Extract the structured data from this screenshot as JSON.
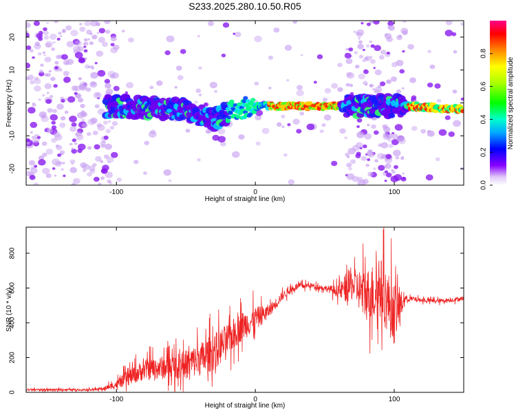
{
  "title": "S233.2025.280.10.50.R05",
  "chart_data": [
    {
      "type": "heatmap",
      "xlabel": "Height of straight line (km)",
      "ylabel": "Frequency (Hz)",
      "xlim": [
        -165,
        150
      ],
      "ylim": [
        -25,
        25
      ],
      "xticks": [
        -100,
        0,
        100
      ],
      "yticks": [
        -20,
        -10,
        0,
        10,
        20
      ],
      "colorbar": {
        "label": "Normalized spectral amplitude",
        "range": [
          0,
          1
        ],
        "ticks": [
          0.0,
          0.2,
          0.4,
          0.6,
          0.8
        ]
      },
      "ridge": {
        "description_points_km_hz": [
          [
            -105,
            -1
          ],
          [
            -50,
            -2
          ],
          [
            -30,
            -5
          ],
          [
            -15,
            -2
          ],
          [
            0,
            -1
          ],
          [
            65,
            -1
          ],
          [
            110,
            -1
          ],
          [
            150,
            -2
          ]
        ],
        "noise_regions_km": [
          [
            -165,
            -100
          ],
          [
            65,
            108
          ]
        ]
      }
    },
    {
      "type": "line",
      "xlabel": "Height of straight line (km)",
      "ylabel": "SNR (10 * v/v)",
      "xlim": [
        -165,
        150
      ],
      "ylim": [
        0,
        950
      ],
      "xticks": [
        -100,
        0,
        100
      ],
      "yticks": [
        0,
        200,
        400,
        600,
        800
      ],
      "series": [
        {
          "name": "SNR",
          "color": "#ee2222",
          "x": [
            -165,
            -120,
            -110,
            -100,
            -90,
            -80,
            -70,
            -60,
            -50,
            -40,
            -30,
            -20,
            -10,
            0,
            10,
            20,
            30,
            40,
            50,
            60,
            65,
            70,
            80,
            90,
            100,
            108,
            120,
            130,
            140,
            150
          ],
          "y": [
            15,
            15,
            20,
            45,
            90,
            130,
            140,
            145,
            160,
            190,
            230,
            300,
            380,
            420,
            470,
            560,
            610,
            615,
            600,
            580,
            600,
            620,
            560,
            600,
            450,
            540,
            530,
            525,
            530,
            540
          ],
          "noise_amp": [
            10,
            10,
            15,
            40,
            80,
            100,
            110,
            120,
            140,
            160,
            180,
            160,
            140,
            120,
            60,
            40,
            30,
            25,
            25,
            60,
            140,
            150,
            250,
            300,
            300,
            30,
            20,
            20,
            20,
            20
          ]
        }
      ]
    }
  ]
}
